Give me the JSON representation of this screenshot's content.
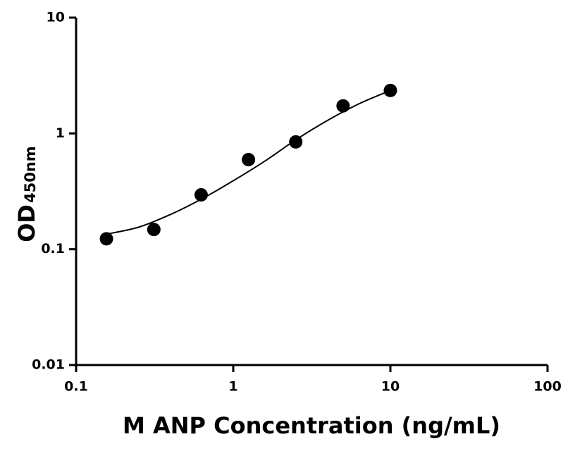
{
  "chart_data": {
    "type": "scatter",
    "x_label": "M ANP Concentration (ng/mL)",
    "y_label": "OD",
    "y_label_sub": "450nm",
    "log_x": true,
    "log_y": true,
    "x": [
      0.156,
      0.3125,
      0.625,
      1.25,
      2.5,
      5,
      10
    ],
    "values": [
      0.123,
      0.148,
      0.295,
      0.594,
      0.845,
      1.73,
      2.35
    ],
    "color": "#000000",
    "fit": {
      "x": [
        0.156,
        0.25,
        0.4,
        0.625,
        1,
        1.6,
        2.5,
        4,
        6.3,
        10
      ],
      "y": [
        0.135,
        0.155,
        0.2,
        0.27,
        0.39,
        0.58,
        0.88,
        1.3,
        1.8,
        2.35
      ]
    },
    "xlim": [
      0.1,
      100
    ],
    "xticks": [
      0.1,
      1,
      10,
      100
    ],
    "ylim": [
      0.01,
      10
    ],
    "yticks": [
      0.01,
      0.1,
      1,
      10
    ]
  }
}
